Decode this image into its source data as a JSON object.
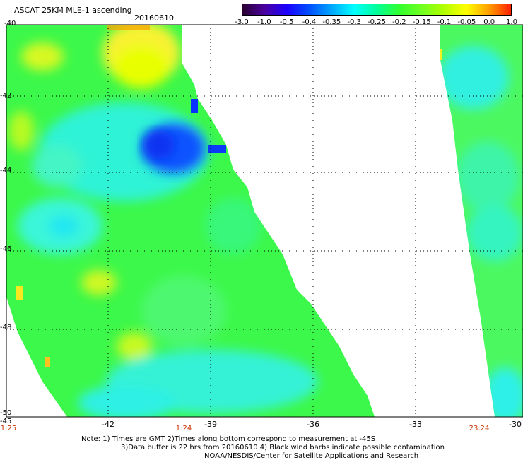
{
  "header": {
    "title": "ASCAT 25KM MLE-1 ascending",
    "date": "20160610"
  },
  "colorbar": {
    "labels": [
      "-3.0",
      "-1.0",
      "-0.5",
      "-0.4",
      "-0.35",
      "-0.3",
      "-0.25",
      "-0.2",
      "-0.15",
      "-0.1",
      "-0.05",
      "0.0",
      "1.0"
    ],
    "colors": [
      "#2a0030",
      "#4a00a0",
      "#1a00ff",
      "#0050ff",
      "#00a8ff",
      "#00ffff",
      "#00ff99",
      "#30ff30",
      "#70ff20",
      "#b0ff00",
      "#ffff00",
      "#ffa000",
      "#ff2000"
    ]
  },
  "axes": {
    "x_labels": [
      "-42",
      "-39",
      "-36",
      "-33",
      "-30"
    ],
    "y_labels": [
      "-40",
      "-42",
      "-44",
      "-46",
      "-48",
      "-50"
    ],
    "bottom_left_label": "-45"
  },
  "time_labels": [
    "1:25",
    "1:24",
    "23:24"
  ],
  "notes": [
    "Note: 1) Times are GMT 2)Times along bottom correspond to measurement at -45S",
    "3)Data buffer is 22 hrs from 20160610 4) Black wind barbs indicate possible contamination",
    "NOAA/NESDIS/Center for Satellite Applications and Research"
  ]
}
